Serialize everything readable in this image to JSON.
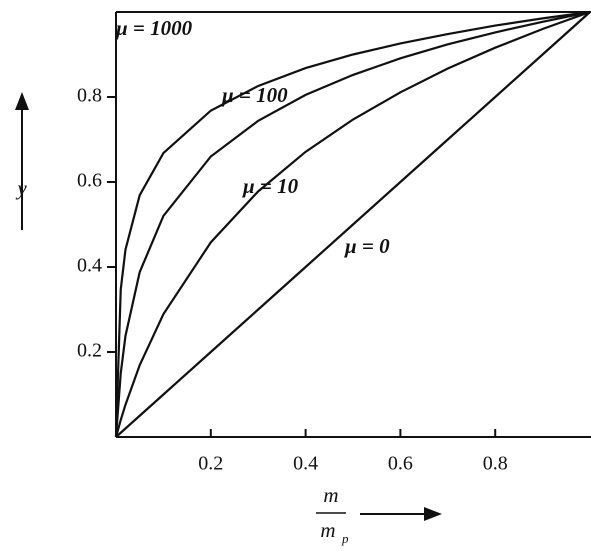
{
  "chart_data": {
    "type": "line",
    "ylabel": "y",
    "xlabel_numerator": "m",
    "xlabel_denominator": "m",
    "xlabel_subscript": "p",
    "x": [
      0,
      0.01,
      0.02,
      0.05,
      0.1,
      0.2,
      0.3,
      0.4,
      0.5,
      0.6,
      0.7,
      0.8,
      0.9,
      1.0
    ],
    "series": [
      {
        "name": "μ = 1000",
        "color": "#111111",
        "values": [
          0,
          0.347,
          0.441,
          0.569,
          0.668,
          0.768,
          0.826,
          0.868,
          0.9,
          0.926,
          0.948,
          0.968,
          0.985,
          1.0
        ]
      },
      {
        "name": "μ = 100",
        "color": "#111111",
        "values": [
          0,
          0.15,
          0.238,
          0.388,
          0.52,
          0.66,
          0.744,
          0.805,
          0.852,
          0.891,
          0.924,
          0.952,
          0.977,
          1.0
        ]
      },
      {
        "name": "μ = 10",
        "color": "#111111",
        "values": [
          0,
          0.04,
          0.076,
          0.169,
          0.289,
          0.458,
          0.578,
          0.671,
          0.747,
          0.811,
          0.867,
          0.916,
          0.96,
          1.0
        ]
      },
      {
        "name": "μ = 0",
        "color": "#111111",
        "values": [
          0,
          0.01,
          0.02,
          0.05,
          0.1,
          0.2,
          0.3,
          0.4,
          0.5,
          0.6,
          0.7,
          0.8,
          0.9,
          1.0
        ]
      }
    ],
    "xlim": [
      0,
      1
    ],
    "ylim": [
      0,
      1
    ],
    "xticks": [
      0.2,
      0.4,
      0.6,
      0.8
    ],
    "yticks": [
      0.2,
      0.4,
      0.6,
      0.8
    ]
  }
}
